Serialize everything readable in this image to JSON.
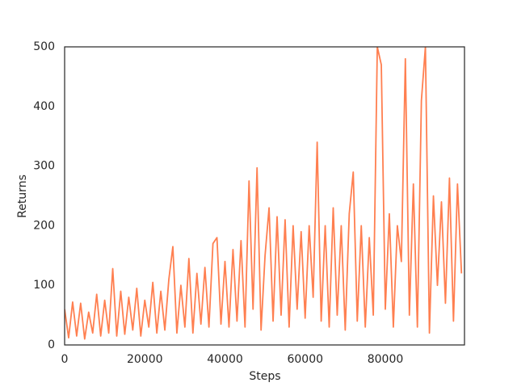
{
  "chart_data": {
    "type": "line",
    "xlabel": "Steps",
    "ylabel": "Returns",
    "x": [
      0,
      1000,
      2000,
      3000,
      4000,
      5000,
      6000,
      7000,
      8000,
      9000,
      10000,
      11000,
      12000,
      13000,
      14000,
      15000,
      16000,
      17000,
      18000,
      19000,
      20000,
      21000,
      22000,
      23000,
      24000,
      25000,
      26000,
      27000,
      28000,
      29000,
      30000,
      31000,
      32000,
      33000,
      34000,
      35000,
      36000,
      37000,
      38000,
      39000,
      40000,
      41000,
      42000,
      43000,
      44000,
      45000,
      46000,
      47000,
      48000,
      49000,
      50000,
      51000,
      52000,
      53000,
      54000,
      55000,
      56000,
      57000,
      58000,
      59000,
      60000,
      61000,
      62000,
      63000,
      64000,
      65000,
      66000,
      67000,
      68000,
      69000,
      70000,
      71000,
      72000,
      73000,
      74000,
      75000,
      76000,
      77000,
      78000,
      79000,
      80000,
      81000,
      82000,
      83000,
      84000,
      85000,
      86000,
      87000,
      88000,
      89000,
      90000,
      91000,
      92000,
      93000,
      94000,
      95000,
      96000,
      97000,
      98000,
      99000
    ],
    "series": [
      {
        "name": "Returns",
        "color": "#ff7f50",
        "values": [
          60,
          12,
          72,
          15,
          70,
          10,
          55,
          20,
          85,
          15,
          75,
          20,
          128,
          15,
          90,
          18,
          80,
          25,
          95,
          15,
          75,
          30,
          105,
          20,
          90,
          25,
          110,
          165,
          20,
          100,
          30,
          145,
          20,
          120,
          35,
          130,
          30,
          170,
          180,
          35,
          140,
          30,
          160,
          40,
          175,
          30,
          275,
          60,
          297,
          25,
          150,
          230,
          40,
          215,
          50,
          210,
          30,
          200,
          60,
          190,
          45,
          200,
          80,
          340,
          40,
          200,
          30,
          230,
          50,
          200,
          25,
          220,
          290,
          40,
          200,
          30,
          180,
          50,
          500,
          470,
          60,
          220,
          30,
          200,
          140,
          480,
          50,
          270,
          30,
          410,
          500,
          20,
          250,
          100,
          240,
          70,
          280,
          40,
          270,
          120
        ]
      }
    ],
    "xlim": [
      0,
      99750
    ],
    "xticks": [
      0,
      20000,
      40000,
      60000,
      80000
    ],
    "ylim": [
      0,
      500
    ],
    "yticks": [
      0,
      100,
      200,
      300,
      400,
      500
    ],
    "grid": false
  }
}
